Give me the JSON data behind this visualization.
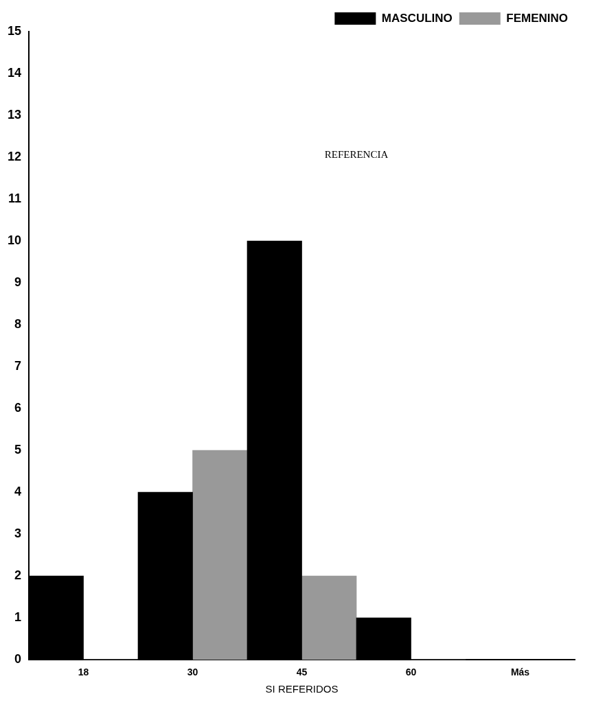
{
  "chart_data": {
    "type": "bar",
    "categories": [
      "18",
      "30",
      "45",
      "60",
      "Más"
    ],
    "series": [
      {
        "name": "MASCULINO",
        "color": "#000000",
        "values": [
          2,
          4,
          10,
          1,
          null
        ]
      },
      {
        "name": "FEMENINO",
        "color": "#999999",
        "values": [
          0,
          5,
          2,
          0,
          null
        ]
      }
    ],
    "xlabel": "SI REFERIDOS",
    "annotations": [
      "REFERENCIA"
    ],
    "ylim": [
      0,
      15
    ],
    "yticks": [
      0,
      1,
      2,
      3,
      4,
      5,
      6,
      7,
      8,
      9,
      10,
      11,
      12,
      13,
      14,
      15
    ],
    "grid": false,
    "legend": "top right"
  }
}
